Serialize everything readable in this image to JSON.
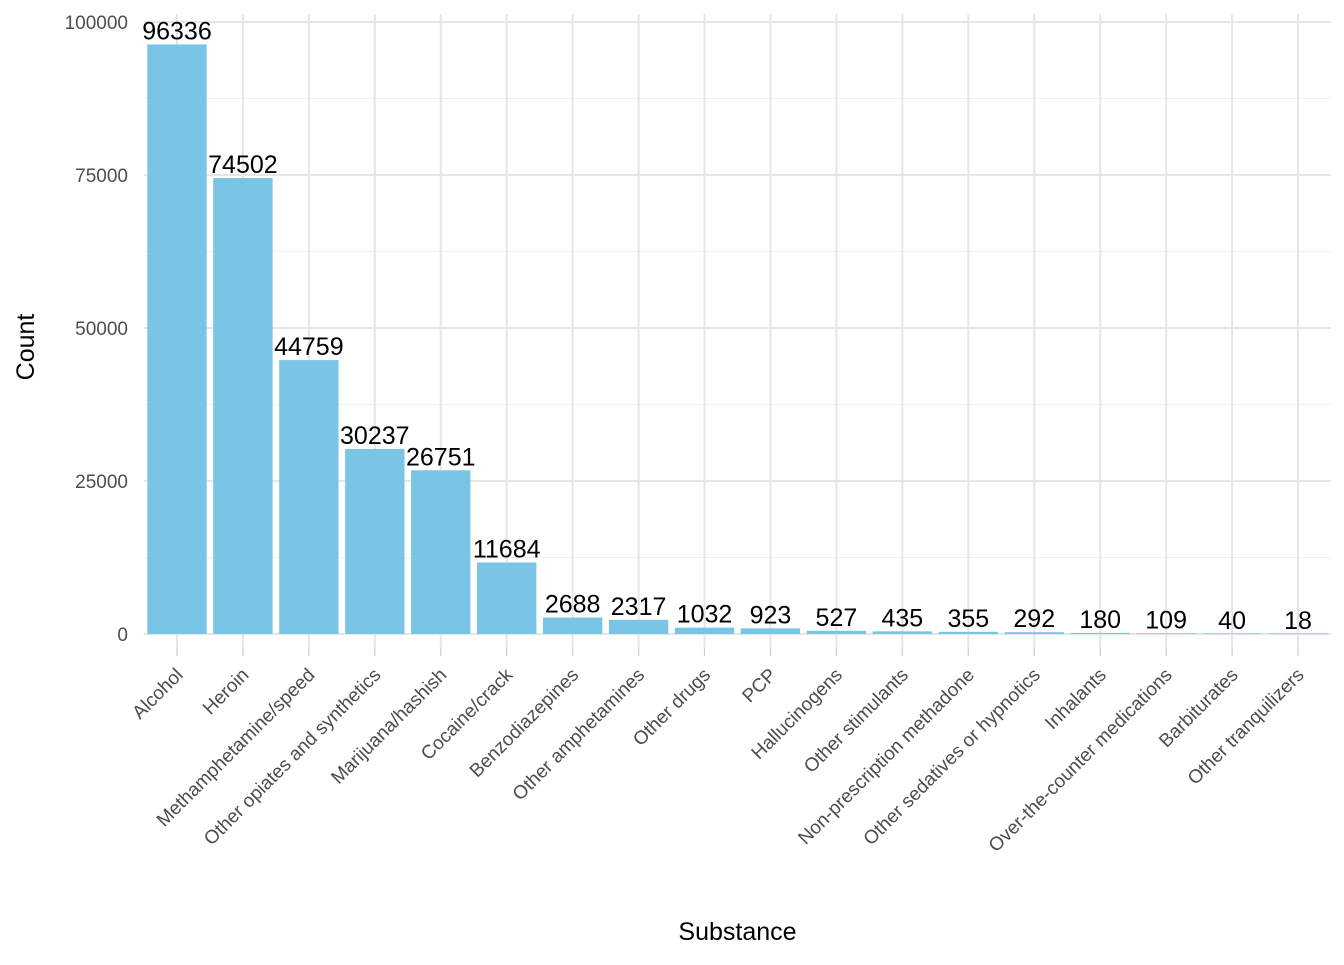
{
  "chart_data": {
    "type": "bar",
    "title": "",
    "xlabel": "Substance",
    "ylabel": "Count",
    "ylim": [
      0,
      100000
    ],
    "y_ticks": [
      0,
      25000,
      50000,
      75000,
      100000
    ],
    "y_tick_labels": [
      "0",
      "25000",
      "50000",
      "75000",
      "100000"
    ],
    "grid": true,
    "legend": "none",
    "bar_color": "#7AC4E5",
    "categories": [
      "Alcohol",
      "Heroin",
      "Methamphetamine/speed",
      "Other opiates and synthetics",
      "Marijuana/hashish",
      "Cocaine/crack",
      "Benzodiazepines",
      "Other amphetamines",
      "Other drugs",
      "PCP",
      "Hallucinogens",
      "Other stimulants",
      "Non-prescription methadone",
      "Other sedatives or hypnotics",
      "Inhalants",
      "Over-the-counter medications",
      "Barbiturates",
      "Other tranquilizers"
    ],
    "values": [
      96336,
      74502,
      44759,
      30237,
      26751,
      11684,
      2688,
      2317,
      1032,
      923,
      527,
      435,
      355,
      292,
      180,
      109,
      40,
      18
    ],
    "data_labels": [
      "96336",
      "74502",
      "44759",
      "30237",
      "26751",
      "11684",
      "2688",
      "2317",
      "1032",
      "923",
      "527",
      "435",
      "355",
      "292",
      "180",
      "109",
      "40",
      "18"
    ]
  }
}
